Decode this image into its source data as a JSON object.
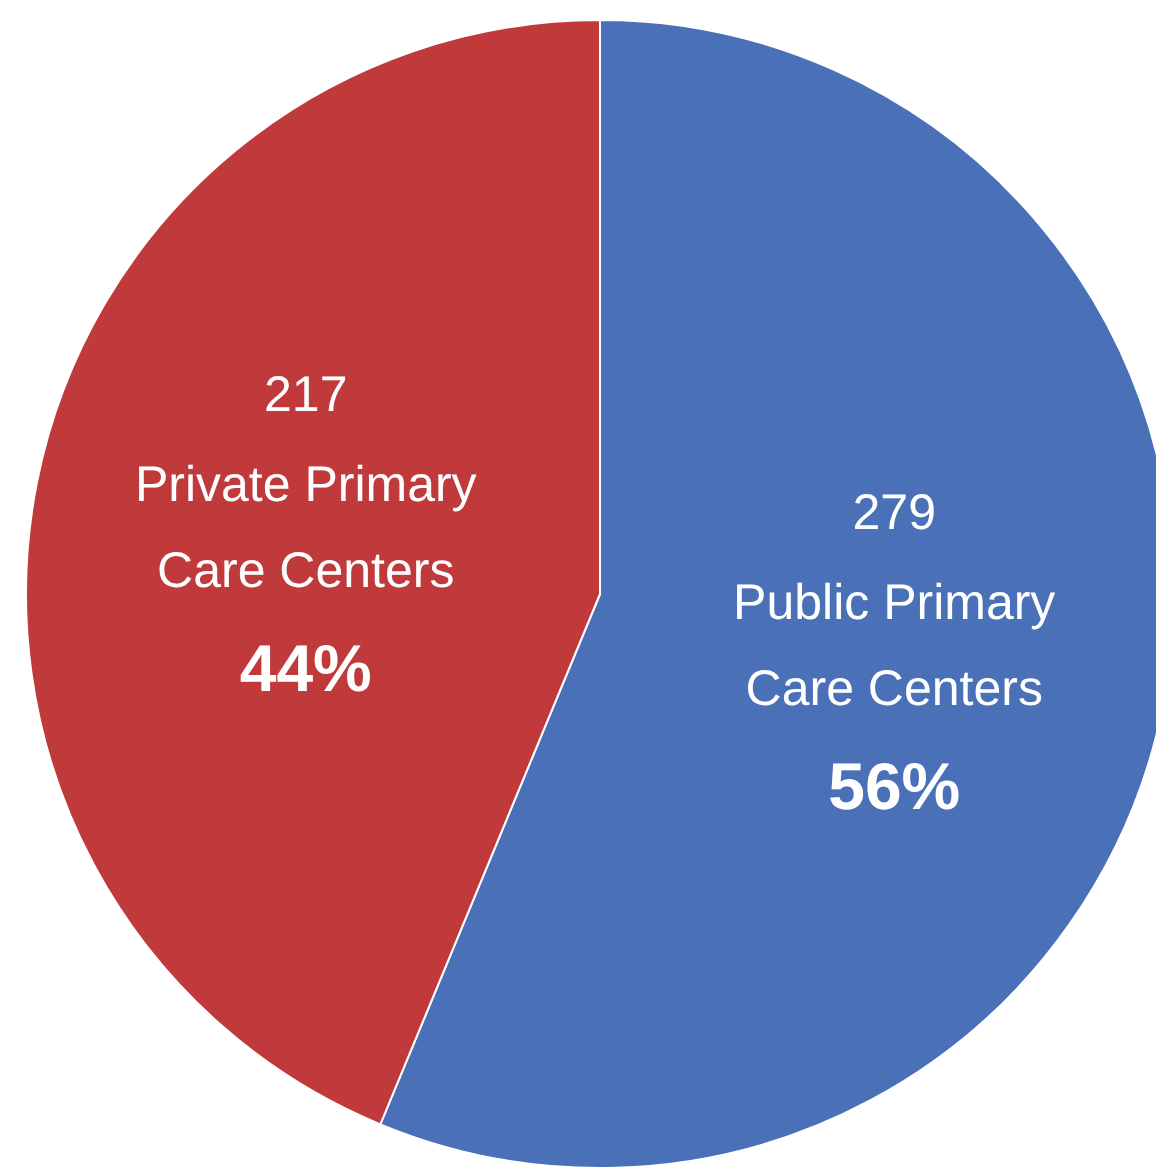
{
  "chart_data": {
    "type": "pie",
    "categories": [
      "Public Primary Care Centers",
      "Private Primary Care Centers"
    ],
    "values": [
      279,
      217
    ],
    "colors": [
      "#4a70b8",
      "#c0393b"
    ],
    "data_labels": true,
    "annotations": [
      {
        "text": "56%",
        "x": "Public Primary Care Centers"
      },
      {
        "text": "44%",
        "x": "Private Primary Care Centers"
      }
    ]
  }
}
